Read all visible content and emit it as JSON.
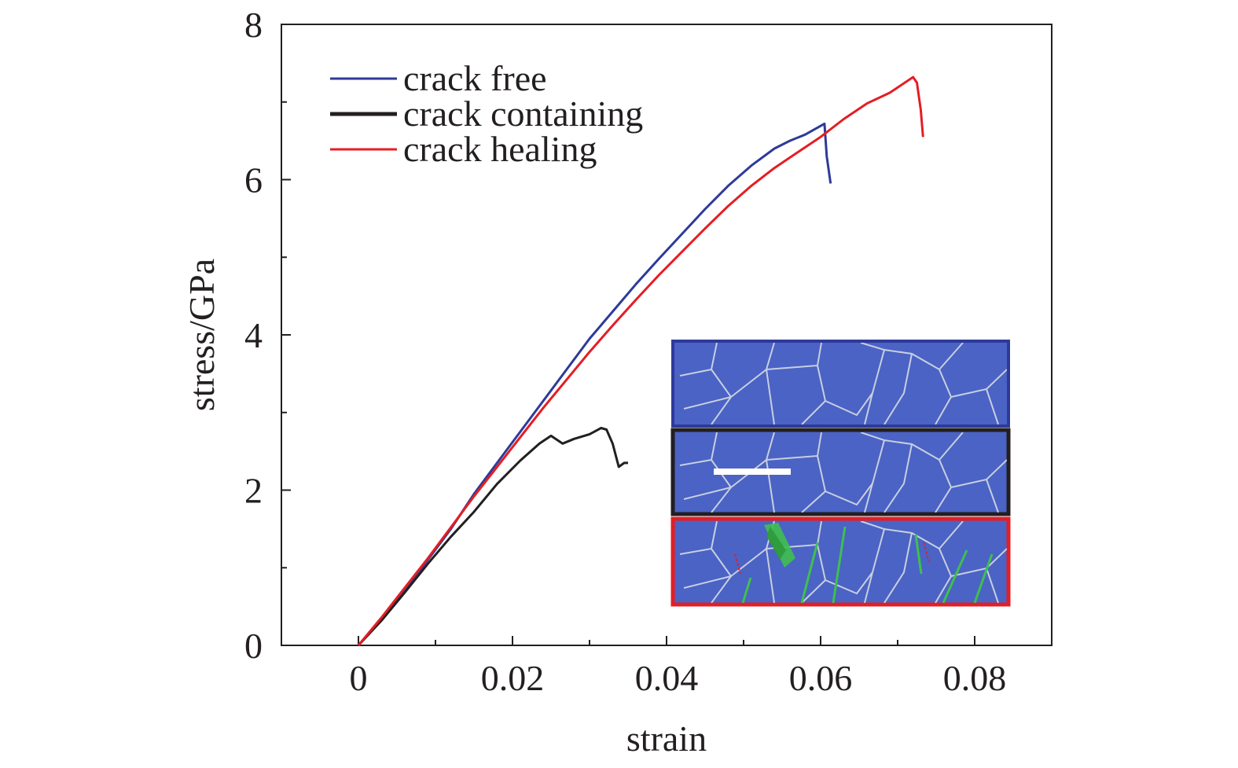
{
  "chart_data": {
    "type": "line",
    "xlabel": "strain",
    "ylabel": "stress/GPa",
    "xlim": [
      -0.01,
      0.09
    ],
    "ylim": [
      0,
      8
    ],
    "x_ticks": [
      0,
      0.02,
      0.04,
      0.06,
      0.08
    ],
    "x_tick_labels": [
      "0",
      "0.02",
      "0.04",
      "0.06",
      "0.08"
    ],
    "y_ticks": [
      0,
      2,
      4,
      6,
      8
    ],
    "y_tick_labels": [
      "0",
      "2",
      "4",
      "6",
      "8"
    ],
    "grid": false,
    "legend_position": "top-left",
    "series": [
      {
        "name": "crack free",
        "color": "#2e3a9a",
        "stroke_width": 3,
        "x": [
          0,
          0.003,
          0.006,
          0.009,
          0.012,
          0.015,
          0.018,
          0.021,
          0.024,
          0.027,
          0.03,
          0.033,
          0.036,
          0.039,
          0.042,
          0.045,
          0.048,
          0.051,
          0.054,
          0.056,
          0.058,
          0.0605,
          0.0608,
          0.0613
        ],
        "y": [
          0,
          0.35,
          0.72,
          1.1,
          1.5,
          1.95,
          2.35,
          2.75,
          3.15,
          3.55,
          3.95,
          4.3,
          4.65,
          4.98,
          5.3,
          5.62,
          5.92,
          6.18,
          6.4,
          6.5,
          6.58,
          6.72,
          6.3,
          5.95
        ]
      },
      {
        "name": "crack containing",
        "color": "#231f20",
        "stroke_width": 3,
        "x": [
          0,
          0.003,
          0.006,
          0.009,
          0.012,
          0.015,
          0.018,
          0.021,
          0.0235,
          0.025,
          0.0265,
          0.028,
          0.03,
          0.0315,
          0.0322,
          0.033,
          0.0338,
          0.0345,
          0.035
        ],
        "y": [
          0,
          0.32,
          0.68,
          1.05,
          1.4,
          1.72,
          2.08,
          2.38,
          2.6,
          2.7,
          2.6,
          2.66,
          2.72,
          2.8,
          2.78,
          2.6,
          2.3,
          2.35,
          2.35
        ]
      },
      {
        "name": "crack healing",
        "color": "#e31e24",
        "stroke_width": 3,
        "x": [
          0,
          0.003,
          0.006,
          0.009,
          0.012,
          0.015,
          0.018,
          0.021,
          0.024,
          0.027,
          0.03,
          0.033,
          0.036,
          0.039,
          0.042,
          0.045,
          0.048,
          0.051,
          0.054,
          0.057,
          0.06,
          0.063,
          0.066,
          0.069,
          0.072,
          0.0725,
          0.073,
          0.0733
        ],
        "y": [
          0,
          0.36,
          0.74,
          1.12,
          1.52,
          1.92,
          2.3,
          2.68,
          3.06,
          3.42,
          3.78,
          4.12,
          4.45,
          4.77,
          5.07,
          5.37,
          5.66,
          5.92,
          6.15,
          6.35,
          6.55,
          6.78,
          6.98,
          7.12,
          7.32,
          7.25,
          6.9,
          6.55
        ]
      }
    ]
  }
}
